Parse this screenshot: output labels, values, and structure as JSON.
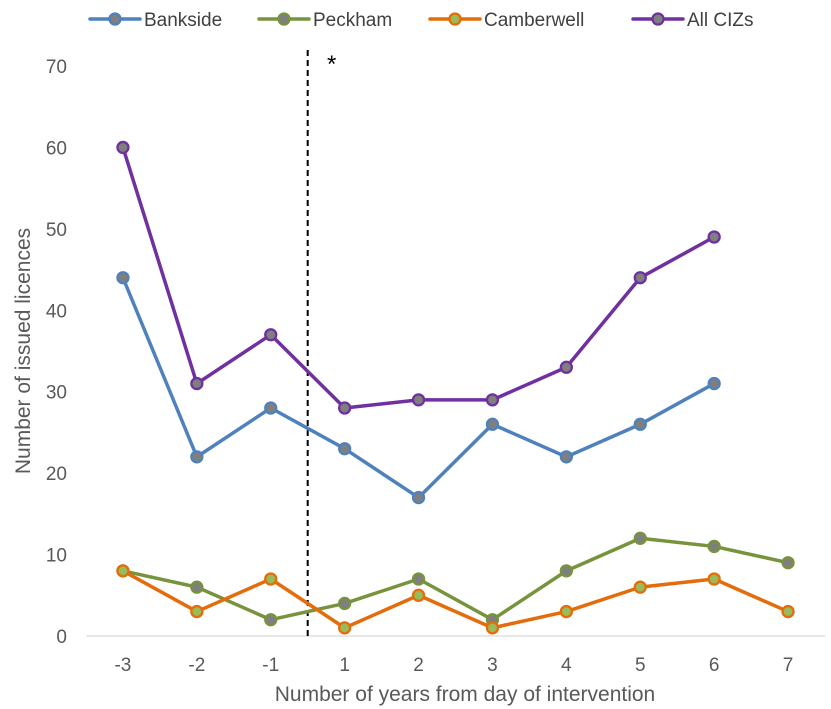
{
  "chart_data": {
    "type": "line",
    "title": "",
    "xlabel": "Number of years from day of intervention",
    "ylabel": "Number of issued licences",
    "x": [
      -3,
      -2,
      -1,
      1,
      2,
      3,
      4,
      5,
      6,
      7
    ],
    "x_tick_labels": [
      "-3",
      "-2",
      "-1",
      "1",
      "2",
      "3",
      "4",
      "5",
      "6",
      "7"
    ],
    "y_ticks": [
      0,
      10,
      20,
      30,
      40,
      50,
      60,
      70
    ],
    "ylim": [
      0,
      70
    ],
    "grid": false,
    "legend_position": "top",
    "series": [
      {
        "name": "Bankside",
        "color": "#4F81BD",
        "marker_fill": "#7F7F7F",
        "values": [
          44,
          22,
          28,
          23,
          17,
          26,
          22,
          26,
          31,
          null
        ]
      },
      {
        "name": "Peckham",
        "color": "#77933C",
        "marker_fill": "#7F7F7F",
        "values": [
          8,
          6,
          2,
          4,
          7,
          2,
          8,
          12,
          11,
          9
        ]
      },
      {
        "name": "Camberwell",
        "color": "#E46C0A",
        "marker_fill": "#9BBB59",
        "values": [
          8,
          3,
          7,
          1,
          5,
          1,
          3,
          6,
          7,
          3
        ]
      },
      {
        "name": "All CIZs",
        "color": "#7030A0",
        "marker_fill": "#7F7F7F",
        "values": [
          60,
          31,
          37,
          28,
          29,
          29,
          33,
          44,
          49,
          null
        ]
      }
    ],
    "annotations": [
      {
        "text": "*",
        "type": "vertical-dashed-line",
        "between": [
          "-1",
          "1"
        ]
      }
    ]
  }
}
